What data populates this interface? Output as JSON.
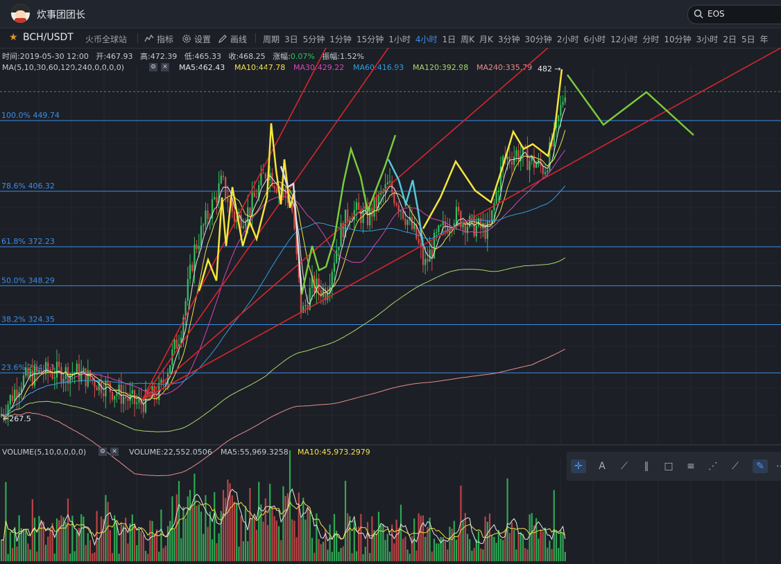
{
  "user": {
    "name": "炊事团团长"
  },
  "search": {
    "value": "EOS"
  },
  "toolbar": {
    "pair": "BCH/USDT",
    "exchange": "火币全球站",
    "indicators": "指标",
    "settings": "设置",
    "draw": "画线",
    "period_label": "周期",
    "periods": [
      "3日",
      "5分钟",
      "1分钟",
      "15分钟",
      "1小时",
      "4小时",
      "1日",
      "周K",
      "月K",
      "3分钟",
      "30分钟",
      "2小时",
      "6小时",
      "12小时",
      "分时",
      "10分钟",
      "3小时",
      "2日",
      "5日",
      "年"
    ],
    "active_period": "4小时"
  },
  "info": {
    "time": "时间:2019-05-30 12:00",
    "open": "开:467.93",
    "high": "高:472.39",
    "low": "低:465.33",
    "close": "收:468.25",
    "change_label": "涨幅:",
    "change_value": "0.07%",
    "amplitude": "振幅:1.52%"
  },
  "ma_legend": {
    "label": "MA(5,10,30,60,120,240,0,0,0,0)",
    "items": [
      {
        "text": "MA5:462.43",
        "color": "#e8e8e8"
      },
      {
        "text": "MA10:447.78",
        "color": "#f2e24a"
      },
      {
        "text": "MA30:429.22",
        "color": "#d646b6"
      },
      {
        "text": "MA60:416.93",
        "color": "#2f9fe0"
      },
      {
        "text": "MA120:392.98",
        "color": "#a9d86e"
      },
      {
        "text": "MA240:335.79",
        "color": "#e88e8e"
      }
    ]
  },
  "volume_legend": {
    "label": "VOLUME(5,10,0,0,0,0)",
    "volume": "VOLUME:22,552.0506",
    "ma5": "MA5:55,969.3258",
    "ma10": "MA10:45,973.2979"
  },
  "chart_data": {
    "type": "candlestick",
    "fib_levels": [
      {
        "label": "100.0% 449.74",
        "value": 449.74
      },
      {
        "label": "78.6% 406.32",
        "value": 406.32
      },
      {
        "label": "61.8% 372.23",
        "value": 372.23
      },
      {
        "label": "50.0% 348.29",
        "value": 348.29
      },
      {
        "label": "38.2% 324.35",
        "value": 324.35
      },
      {
        "label": "23.6% 294.73",
        "value": 294.73
      }
    ],
    "price_markers": [
      {
        "label": "482 →",
        "value": 482
      },
      {
        "label": "←267.5",
        "value": 267.5
      }
    ],
    "colors": {
      "up": "#33c15d",
      "down": "#d84b4b",
      "fib": "#3b8fe8",
      "trendline": "#d8262d",
      "wave": "#f5e63b",
      "projection": "#7acc3a",
      "correction": "#55c8d8"
    }
  }
}
